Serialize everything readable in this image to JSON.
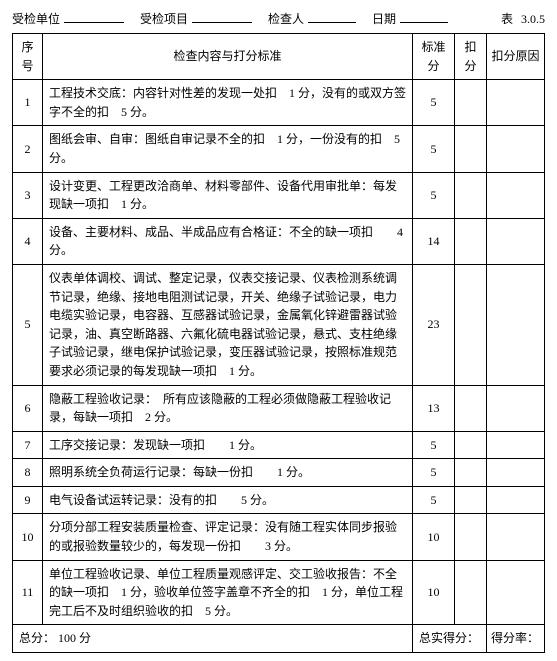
{
  "header": {
    "unit_label": "受检单位",
    "project_label": "受检项目",
    "inspector_label": "检查人",
    "date_label": "日期",
    "table_no_label": "表",
    "table_no": "3.0.5"
  },
  "columns": {
    "num": "序号",
    "content": "检查内容与打分标准",
    "std": "标准分",
    "deduct": "扣分",
    "reason": "扣分原因"
  },
  "rows": [
    {
      "num": "1",
      "content": "工程技术交底：内容针对性差的发现一处扣　1 分，没有的或双方签字不全的扣　5 分。",
      "std": "5"
    },
    {
      "num": "2",
      "content": "图纸会审、自审：图纸自审记录不全的扣　1 分，一份没有的扣　5 分。",
      "std": "5"
    },
    {
      "num": "3",
      "content": "设计变更、工程更改洽商单、材料零部件、设备代用审批单：每发现缺一项扣　1 分。",
      "std": "5"
    },
    {
      "num": "4",
      "content": "设备、主要材料、成品、半成品应有合格证：不全的缺一项扣　　4 分。",
      "std": "14"
    },
    {
      "num": "5",
      "content": "仪表单体调校、调试、整定记录，仪表交接记录、仪表检测系统调节记录，绝缘、接地电阻测试记录，开关、绝缘子试验记录，电力电缆实验记录，电容器、互感器试验记录，金属氧化锌避雷器试验记录，油、真空断路器、六氟化硫电器试验记录，悬式、支柱绝缘子试验记录，继电保护试验记录，变压器试验记录，按照标准规范要求必须记录的每发现缺一项扣　1 分。",
      "std": "23"
    },
    {
      "num": "6",
      "content": "隐蔽工程验收记录：　所有应该隐蔽的工程必须做隐蔽工程验收记录，每缺一项扣　2 分。",
      "std": "13"
    },
    {
      "num": "7",
      "content": "工序交接记录：发现缺一项扣　　1 分。",
      "std": "5"
    },
    {
      "num": "8",
      "content": "照明系统全负荷运行记录：每缺一份扣　　1 分。",
      "std": "5"
    },
    {
      "num": "9",
      "content": "电气设备试运转记录：没有的扣　　5 分。",
      "std": "5"
    },
    {
      "num": "10",
      "content": "分项分部工程安装质量检查、评定记录：没有随工程实体同步报验的或报验数量较少的，每发现一份扣　　3 分。",
      "std": "10"
    },
    {
      "num": "11",
      "content": "单位工程验收记录、单位工程质量观感评定、交工验收报告：不全的缺一项扣　1 分，验收单位签字盖章不齐全的扣　1 分，单位工程完工后不及时组织验收的扣　5 分。",
      "std": "10"
    }
  ],
  "footer": {
    "total_label": "总分：",
    "total_value": "100 分",
    "actual_label": "总实得分：",
    "rate_label": "得分率：",
    "rate_unit": "%"
  }
}
